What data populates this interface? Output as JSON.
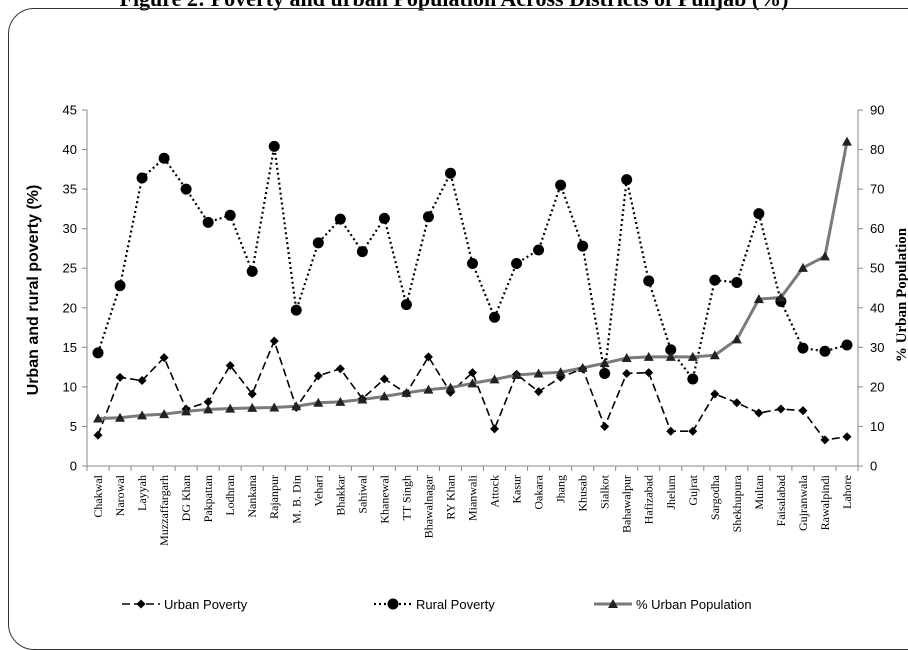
{
  "title": "Figure 2: Poverty and urban Population Across Districts of Punjab (%)",
  "chart_data": {
    "type": "line",
    "categories": [
      "Chakwal",
      "Narowal",
      "Layyah",
      "Muzzaffargarh",
      "DG Khan",
      "Pakpattan",
      "Lodhran",
      "Nankana",
      "Rajanpur",
      "M. B. Din",
      "Vehari",
      "Bhakkar",
      "Sahiwal",
      "Khanewal",
      "TT Singh",
      "Bhawalnagar",
      "RY Khan",
      "Mianwali",
      "Attock",
      "Kasur",
      "Oakara",
      "Jhang",
      "Khusab",
      "Sialkot",
      "Bahawalpur",
      "Hafizabad",
      "Jhelum",
      "Gujrat",
      "Sargodha",
      "Shekhupura",
      "Multan",
      "Faisalabad",
      "Gujranwala",
      "Rawalpindi",
      "Lahore"
    ],
    "ylabel": "Urban and rural poverty (%)",
    "y2label": "% Urban Population",
    "ylim": [
      0,
      45
    ],
    "y2lim": [
      0,
      90
    ],
    "yticks": [
      "0",
      "5",
      "10",
      "15",
      "20",
      "25",
      "30",
      "35",
      "40",
      "45"
    ],
    "y2ticks": [
      "0",
      "10",
      "20",
      "30",
      "40",
      "50",
      "60",
      "70",
      "80",
      "90"
    ],
    "series": [
      {
        "name": "Urban Poverty",
        "axis": "left",
        "color": "#000000",
        "marker": "diamond",
        "line": "dash",
        "values": [
          3.9,
          11.2,
          10.8,
          13.7,
          7.2,
          8.1,
          12.7,
          9.1,
          15.8,
          7.4,
          11.4,
          12.3,
          8.5,
          11.0,
          9.2,
          13.8,
          9.3,
          11.8,
          4.7,
          11.6,
          9.4,
          11.2,
          12.3,
          5.0,
          11.7,
          11.8,
          4.4,
          4.4,
          9.1,
          8.0,
          6.7,
          7.2,
          7.0,
          3.3,
          3.7
        ]
      },
      {
        "name": "Rural Poverty",
        "axis": "left",
        "color": "#000000",
        "marker": "circle",
        "line": "dot",
        "values": [
          14.3,
          22.8,
          36.4,
          38.9,
          35.0,
          30.8,
          31.7,
          24.6,
          40.4,
          19.7,
          28.2,
          31.2,
          27.1,
          31.3,
          20.4,
          31.5,
          37.0,
          25.6,
          18.8,
          25.6,
          27.3,
          35.5,
          27.8,
          11.7,
          36.2,
          23.4,
          14.7,
          11.0,
          23.5,
          23.2,
          31.9,
          20.8,
          14.9,
          14.5,
          15.3
        ]
      },
      {
        "name": "% Urban Population",
        "axis": "right",
        "color": "#6e6e6e",
        "marker": "triangle",
        "line": "solid",
        "values": [
          12.0,
          12.2,
          12.8,
          13.1,
          13.8,
          14.3,
          14.5,
          14.7,
          14.8,
          15.1,
          16.0,
          16.2,
          16.8,
          17.6,
          18.5,
          19.3,
          19.8,
          20.9,
          21.9,
          23.0,
          23.4,
          23.7,
          24.8,
          26.0,
          27.3,
          27.6,
          27.6,
          27.6,
          28.0,
          32.0,
          42.2,
          42.6,
          50.1,
          53.0,
          82.0
        ]
      }
    ]
  }
}
